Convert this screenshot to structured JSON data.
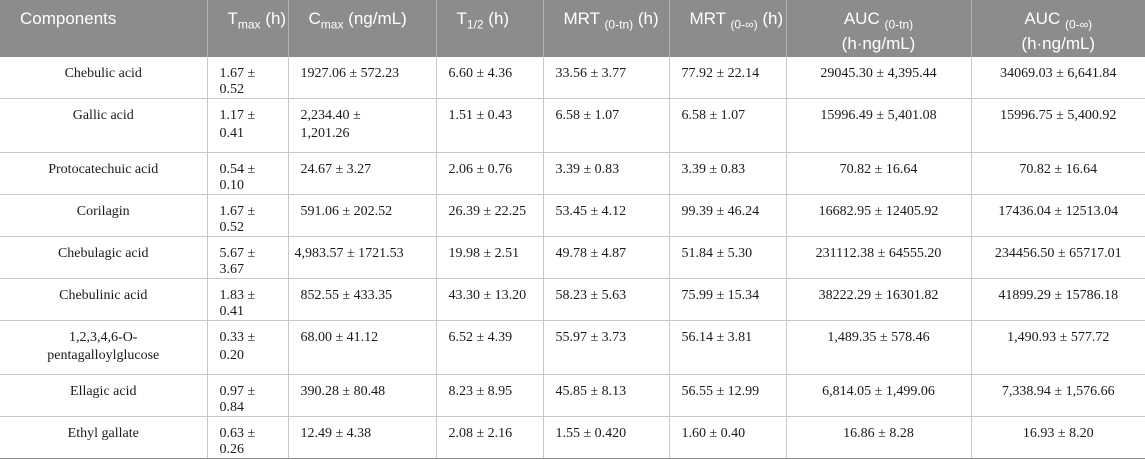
{
  "table": {
    "headers": {
      "components": "Components",
      "tmax_main": "T",
      "tmax_sub": "max",
      "tmax_unit": " (h)",
      "cmax_main": "C",
      "cmax_sub": "max",
      "cmax_unit": " (ng/mL)",
      "thalf_main": "T",
      "thalf_sub": "1/2",
      "thalf_unit": " (h)",
      "mrt_tn_main": "MRT ",
      "mrt_tn_sub": "(0-tn)",
      "mrt_tn_unit": " (h)",
      "mrt_inf_main": "MRT ",
      "mrt_inf_sub": "(0-∞)",
      "mrt_inf_unit": " (h)",
      "auc_tn_main": "AUC ",
      "auc_tn_sub": "(0-tn)",
      "auc_tn_unit": "(h·ng/mL)",
      "auc_inf_main": "AUC ",
      "auc_inf_sub": "(0-∞)",
      "auc_inf_unit": "(h·ng/mL)"
    },
    "rows": [
      {
        "name": "Chebulic acid",
        "tmax": "1.67 ± 0.52",
        "cmax": "1927.06 ± 572.23",
        "thalf": "6.60 ± 4.36",
        "mrt_tn": "33.56 ± 3.77",
        "mrt_inf": "77.92 ± 22.14",
        "auc_tn": "29045.30 ± 4,395.44",
        "auc_inf": "34069.03 ± 6,641.84"
      },
      {
        "name": "Gallic acid",
        "tmax": "1.17 ± 0.41",
        "cmax": "2,234.40 ±\n1,201.26",
        "thalf": "1.51 ± 0.43",
        "mrt_tn": "6.58 ± 1.07",
        "mrt_inf": "6.58 ± 1.07",
        "auc_tn": "15996.49 ± 5,401.08",
        "auc_inf": "15996.75 ± 5,400.92"
      },
      {
        "name": "Protocatechuic acid",
        "tmax": "0.54 ± 0.10",
        "cmax": "24.67 ± 3.27",
        "thalf": "2.06 ± 0.76",
        "mrt_tn": "3.39 ± 0.83",
        "mrt_inf": "3.39 ± 0.83",
        "auc_tn": "70.82 ± 16.64",
        "auc_inf": "70.82 ± 16.64"
      },
      {
        "name": "Corilagin",
        "tmax": "1.67 ± 0.52",
        "cmax": "591.06 ± 202.52",
        "thalf": "26.39 ± 22.25",
        "mrt_tn": "53.45 ± 4.12",
        "mrt_inf": "99.39 ± 46.24",
        "auc_tn": "16682.95 ± 12405.92",
        "auc_inf": "17436.04 ± 12513.04"
      },
      {
        "name": "Chebulagic acid",
        "tmax": "5.67 ± 3.67",
        "cmax": "4,983.57 ± 1721.53",
        "thalf": "19.98 ± 2.51",
        "mrt_tn": "49.78 ± 4.87",
        "mrt_inf": "51.84 ± 5.30",
        "auc_tn": "231112.38 ± 64555.20",
        "auc_inf": "234456.50 ± 65717.01"
      },
      {
        "name": "Chebulinic acid",
        "tmax": "1.83 ± 0.41",
        "cmax": "852.55 ± 433.35",
        "thalf": "43.30 ± 13.20",
        "mrt_tn": "58.23 ± 5.63",
        "mrt_inf": "75.99 ± 15.34",
        "auc_tn": "38222.29 ± 16301.82",
        "auc_inf": "41899.29 ± 15786.18"
      },
      {
        "name": "1,2,3,4,6-O-\npentagalloylglucose",
        "tmax": "0.33 ± 0.20",
        "cmax": "68.00 ± 41.12",
        "thalf": "6.52 ± 4.39",
        "mrt_tn": "55.97 ± 3.73",
        "mrt_inf": "56.14 ± 3.81",
        "auc_tn": "1,489.35 ± 578.46",
        "auc_inf": "1,490.93 ± 577.72"
      },
      {
        "name": "Ellagic acid",
        "tmax": "0.97 ± 0.84",
        "cmax": "390.28 ± 80.48",
        "thalf": "8.23 ± 8.95",
        "mrt_tn": "45.85 ± 8.13",
        "mrt_inf": "56.55 ± 12.99",
        "auc_tn": "6,814.05 ± 1,499.06",
        "auc_inf": "7,338.94 ± 1,576.66"
      },
      {
        "name": "Ethyl gallate",
        "tmax": "0.63 ± 0.26",
        "cmax": "12.49 ± 4.38",
        "thalf": "2.08 ± 2.16",
        "mrt_tn": "1.55 ± 0.420",
        "mrt_inf": "1.60 ± 0.40",
        "auc_tn": "16.86 ± 8.28",
        "auc_inf": "16.93 ± 8.20"
      }
    ]
  }
}
